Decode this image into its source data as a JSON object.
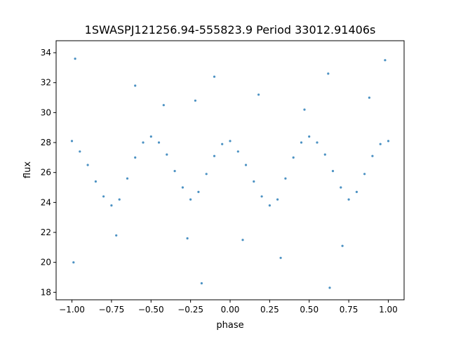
{
  "chart_data": {
    "type": "scatter",
    "title": "1SWASPJ121256.94-555823.9 Period 33012.91406s",
    "xlabel": "phase",
    "ylabel": "flux",
    "xlim": [
      -1.1,
      1.1
    ],
    "ylim": [
      17.5,
      34.8
    ],
    "x_ticks": [
      -1.0,
      -0.75,
      -0.5,
      -0.25,
      0.0,
      0.25,
      0.5,
      0.75,
      1.0
    ],
    "x_tick_labels": [
      "−1.00",
      "−0.75",
      "−0.50",
      "−0.25",
      "0.00",
      "0.25",
      "0.50",
      "0.75",
      "1.00"
    ],
    "y_ticks": [
      18,
      20,
      22,
      24,
      26,
      28,
      30,
      32,
      34
    ],
    "y_tick_labels": [
      "18",
      "20",
      "22",
      "24",
      "26",
      "28",
      "30",
      "32",
      "34"
    ],
    "grid": false,
    "legend": "none",
    "marker_color": "#1f77b4",
    "series": [
      {
        "points": [
          [
            -1.0,
            28.1
          ],
          [
            -0.95,
            27.4
          ],
          [
            -0.9,
            26.5
          ],
          [
            -0.85,
            25.4
          ],
          [
            -0.8,
            24.4
          ],
          [
            -0.75,
            23.8
          ],
          [
            -0.7,
            24.2
          ],
          [
            -0.65,
            25.6
          ],
          [
            -0.6,
            27.0
          ],
          [
            -0.55,
            28.0
          ],
          [
            -0.5,
            28.4
          ],
          [
            -0.45,
            28.0
          ],
          [
            -0.4,
            27.2
          ],
          [
            -0.35,
            26.1
          ],
          [
            -0.3,
            25.0
          ],
          [
            -0.25,
            24.2
          ],
          [
            -0.2,
            24.7
          ],
          [
            -0.15,
            25.9
          ],
          [
            -0.1,
            27.1
          ],
          [
            -0.05,
            27.9
          ],
          [
            0.0,
            28.1
          ],
          [
            0.05,
            27.4
          ],
          [
            0.1,
            26.5
          ],
          [
            0.15,
            25.4
          ],
          [
            0.2,
            24.4
          ],
          [
            0.25,
            23.8
          ],
          [
            0.3,
            24.2
          ],
          [
            0.35,
            25.6
          ],
          [
            0.4,
            27.0
          ],
          [
            0.45,
            28.0
          ],
          [
            0.5,
            28.4
          ],
          [
            0.55,
            28.0
          ],
          [
            0.6,
            27.2
          ],
          [
            0.65,
            26.1
          ],
          [
            0.7,
            25.0
          ],
          [
            0.75,
            24.2
          ],
          [
            0.8,
            24.7
          ],
          [
            0.85,
            25.9
          ],
          [
            0.9,
            27.1
          ],
          [
            0.95,
            27.9
          ],
          [
            1.0,
            28.1
          ],
          [
            -0.98,
            33.6
          ],
          [
            -0.72,
            21.8
          ],
          [
            -0.6,
            31.8
          ],
          [
            -0.42,
            30.5
          ],
          [
            -0.27,
            21.6
          ],
          [
            -0.22,
            30.8
          ],
          [
            -0.1,
            32.4
          ],
          [
            0.08,
            21.5
          ],
          [
            0.18,
            31.2
          ],
          [
            0.32,
            20.3
          ],
          [
            0.47,
            30.2
          ],
          [
            0.62,
            32.6
          ],
          [
            0.71,
            21.1
          ],
          [
            0.88,
            31.0
          ],
          [
            0.98,
            33.5
          ],
          [
            -0.99,
            20.0
          ],
          [
            -0.18,
            18.6
          ],
          [
            0.63,
            18.3
          ]
        ]
      }
    ]
  }
}
